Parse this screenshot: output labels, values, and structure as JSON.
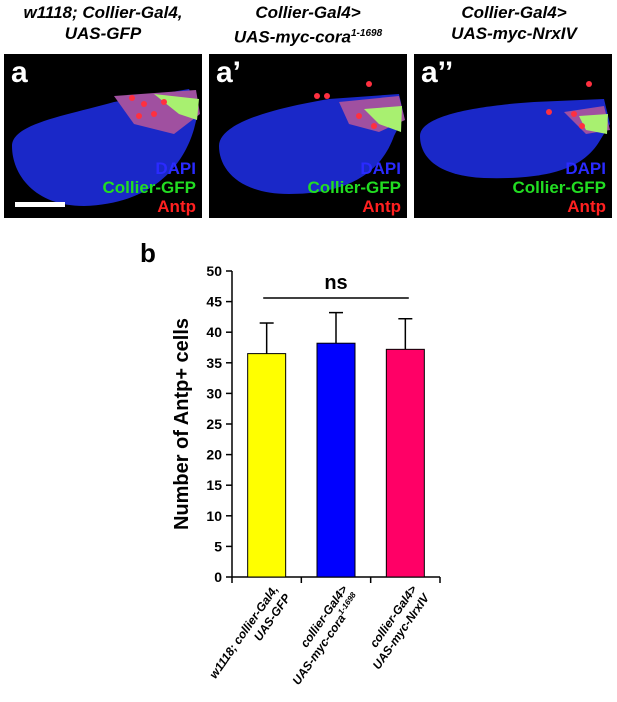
{
  "figure_top": {
    "columns": [
      {
        "title_lines": [
          "w1118; Collier-Gal4,",
          "UAS-GFP"
        ],
        "panel_letter": "a",
        "legend": [
          "DAPI",
          "Collier-GFP",
          "Antp"
        ],
        "has_scale_bar": true
      },
      {
        "title_lines": [
          "Collier-Gal4>",
          "UAS-myc-cora"
        ],
        "title_superscript": "1-1698",
        "panel_letter": "a’",
        "legend": [
          "DAPI",
          "Collier-GFP",
          "Antp"
        ],
        "has_scale_bar": false
      },
      {
        "title_lines": [
          "Collier-Gal4>",
          "UAS-myc-NrxIV"
        ],
        "panel_letter": "a’’",
        "legend": [
          "DAPI",
          "Collier-GFP",
          "Antp"
        ],
        "has_scale_bar": false
      }
    ],
    "legend_colors": {
      "DAPI": "#2a2aff",
      "Collier-GFP": "#22dd22",
      "Antp": "#ff2020"
    }
  },
  "panel_b_letter": "b",
  "chart_data": {
    "type": "bar",
    "categories": [
      "w1118; collier-Gal4, UAS-GFP",
      "collier-Gal4> UAS-myc-cora1-1698",
      "collier-Gal4> UAS-myc-NrxIV"
    ],
    "category_lines": [
      {
        "lines": [
          "w1118; collier-Gal4,",
          "UAS-GFP"
        ]
      },
      {
        "lines": [
          "collier-Gal4>",
          "UAS-myc-cora"
        ],
        "superscript": "1-1698"
      },
      {
        "lines": [
          "collier-Gal4>",
          "UAS-myc-NrxIV"
        ]
      }
    ],
    "values": [
      36.5,
      38.2,
      37.2
    ],
    "error_plus": [
      5.0,
      5.0,
      5.0
    ],
    "colors": [
      "#ffff00",
      "#0000ff",
      "#ff0066"
    ],
    "ylabel": "Number of Antp+ cells",
    "ylim": [
      0,
      50
    ],
    "yticks": [
      0,
      5,
      10,
      15,
      20,
      25,
      30,
      35,
      40,
      45,
      50
    ],
    "significance": "ns",
    "grid": false
  }
}
